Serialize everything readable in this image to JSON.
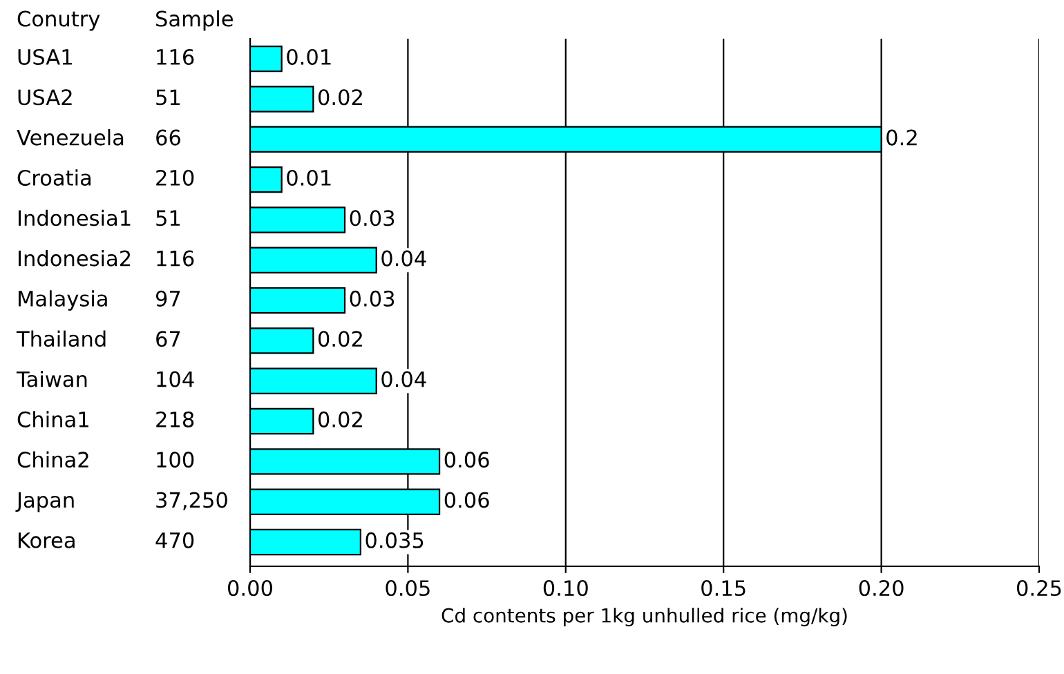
{
  "chart_data": {
    "type": "bar",
    "orientation": "horizontal",
    "xlabel": "Cd contents per 1kg unhulled rice (mg/kg)",
    "categories": [
      "USA1",
      "USA2",
      "Venezuela",
      "Croatia",
      "Indonesia1",
      "Indonesia2",
      "Malaysia",
      "Thailand",
      "Taiwan",
      "China1",
      "China2",
      "Japan",
      "Korea"
    ],
    "values": [
      0.01,
      0.02,
      0.2,
      0.01,
      0.03,
      0.04,
      0.03,
      0.02,
      0.04,
      0.02,
      0.06,
      0.06,
      0.035
    ],
    "color": "#00ffff",
    "data_labels": true,
    "xlim": [
      0,
      0.25
    ],
    "xticks": [
      {
        "value": 0,
        "label": "0.00"
      },
      {
        "value": 0.05,
        "label": "0.05"
      },
      {
        "value": 0.1,
        "label": "0.10"
      },
      {
        "value": 0.15,
        "label": "0.15"
      },
      {
        "value": 0.2,
        "label": "0.20"
      },
      {
        "value": 0.25,
        "label": "0.25"
      }
    ],
    "grid": "x",
    "annotations": [
      "Conutry",
      "Sample",
      "116",
      "51",
      "66",
      "210",
      "51",
      "116",
      "97",
      "67",
      "104",
      "218",
      "100",
      "37,250",
      "470"
    ]
  }
}
